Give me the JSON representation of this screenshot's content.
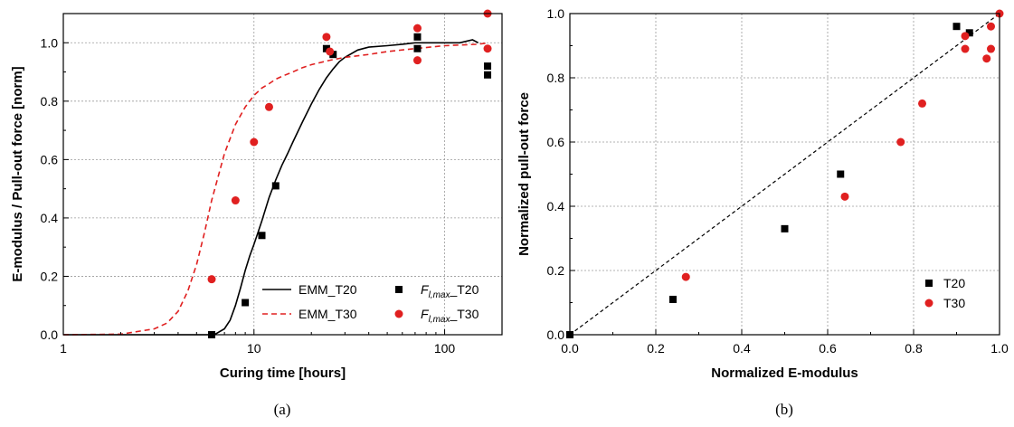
{
  "chart_data": [
    {
      "type": "scatter",
      "caption": "(a)",
      "xlabel": "Curing time [hours]",
      "ylabel": "E-modulus / Pull-out force [norm]",
      "xscale": "log",
      "xlim": [
        1,
        200
      ],
      "ylim": [
        0,
        1.1
      ],
      "xticks": [
        1,
        10,
        100
      ],
      "xtick_labels": [
        "1",
        "10",
        "100"
      ],
      "yticks": [
        0,
        0.2,
        0.4,
        0.6,
        0.8,
        1.0
      ],
      "ytick_labels": [
        "0.0",
        "0.2",
        "0.4",
        "0.6",
        "0.8",
        "1.0"
      ],
      "grid": true,
      "legend_position": "bottom-right",
      "legend_columns": 2,
      "series": [
        {
          "name": "EMM_T20",
          "kind": "line",
          "style": "solid",
          "color": "#000000",
          "x": [
            1,
            5,
            6.2,
            7,
            7.5,
            8,
            8.5,
            9,
            9.5,
            10,
            10.5,
            11,
            12,
            13,
            14,
            15,
            16,
            18,
            20,
            22,
            24,
            26,
            28,
            30,
            35,
            40,
            50,
            60,
            70,
            80,
            100,
            120,
            140,
            150
          ],
          "y": [
            0,
            0,
            0,
            0.02,
            0.05,
            0.1,
            0.16,
            0.22,
            0.27,
            0.31,
            0.35,
            0.39,
            0.47,
            0.53,
            0.58,
            0.62,
            0.66,
            0.73,
            0.79,
            0.84,
            0.88,
            0.91,
            0.935,
            0.95,
            0.975,
            0.985,
            0.99,
            0.995,
            1.0,
            1.0,
            1.0,
            1.0,
            1.01,
            1.0
          ]
        },
        {
          "name": "EMM_T30",
          "kind": "line",
          "style": "dashed",
          "color": "#e02020",
          "x": [
            1,
            2,
            3,
            3.5,
            4,
            4.5,
            5,
            5.5,
            6,
            7,
            8,
            9,
            10,
            11,
            12,
            13,
            14,
            16,
            18,
            20,
            25,
            30,
            40,
            50,
            70,
            100,
            150,
            170
          ],
          "y": [
            0,
            0.002,
            0.02,
            0.04,
            0.08,
            0.15,
            0.24,
            0.35,
            0.46,
            0.62,
            0.72,
            0.78,
            0.82,
            0.845,
            0.86,
            0.875,
            0.885,
            0.9,
            0.915,
            0.925,
            0.94,
            0.95,
            0.96,
            0.97,
            0.98,
            0.99,
            0.995,
            1.0
          ]
        },
        {
          "name": "F",
          "name_sub": "l,max",
          "name_suffix": "_T20",
          "kind": "scatter",
          "marker": "square",
          "color": "#000000",
          "x": [
            6,
            9,
            11,
            13,
            24,
            26,
            72,
            72,
            168,
            168
          ],
          "y": [
            0.0,
            0.11,
            0.34,
            0.51,
            0.98,
            0.96,
            1.02,
            0.98,
            0.92,
            0.89
          ]
        },
        {
          "name": "F",
          "name_sub": "l,max",
          "name_suffix": "_T30",
          "kind": "scatter",
          "marker": "circle",
          "color": "#e02020",
          "x": [
            6,
            8,
            10,
            12,
            24,
            25,
            72,
            72,
            168,
            168
          ],
          "y": [
            0.19,
            0.46,
            0.66,
            0.78,
            1.02,
            0.97,
            1.05,
            0.94,
            1.1,
            0.98
          ]
        }
      ]
    },
    {
      "type": "scatter",
      "caption": "(b)",
      "xlabel": "Normalized E-modulus",
      "ylabel": "Normalized pull-out force",
      "xlim": [
        0,
        1
      ],
      "ylim": [
        0,
        1
      ],
      "xticks": [
        0,
        0.2,
        0.4,
        0.6,
        0.8,
        1.0
      ],
      "xtick_labels": [
        "0.0",
        "0.2",
        "0.4",
        "0.6",
        "0.8",
        "1.0"
      ],
      "yticks": [
        0,
        0.2,
        0.4,
        0.6,
        0.8,
        1.0
      ],
      "ytick_labels": [
        "0.0",
        "0.2",
        "0.4",
        "0.6",
        "0.8",
        "1.0"
      ],
      "grid": true,
      "legend_position": "bottom-right",
      "reference_line": {
        "x": [
          0,
          1
        ],
        "y": [
          0,
          1
        ],
        "style": "dashed",
        "color": "#000000"
      },
      "series": [
        {
          "name": "T20",
          "kind": "scatter",
          "marker": "square",
          "color": "#000000",
          "x": [
            0.0,
            0.24,
            0.5,
            0.63,
            0.9,
            0.93
          ],
          "y": [
            0.0,
            0.11,
            0.33,
            0.5,
            0.96,
            0.94
          ]
        },
        {
          "name": "T30",
          "kind": "scatter",
          "marker": "circle",
          "color": "#e02020",
          "x": [
            0.27,
            0.64,
            0.77,
            0.82,
            0.92,
            0.92,
            0.97,
            0.98,
            0.98,
            1.0
          ],
          "y": [
            0.18,
            0.43,
            0.6,
            0.72,
            0.93,
            0.89,
            0.86,
            0.89,
            0.96,
            1.0
          ]
        }
      ]
    }
  ]
}
